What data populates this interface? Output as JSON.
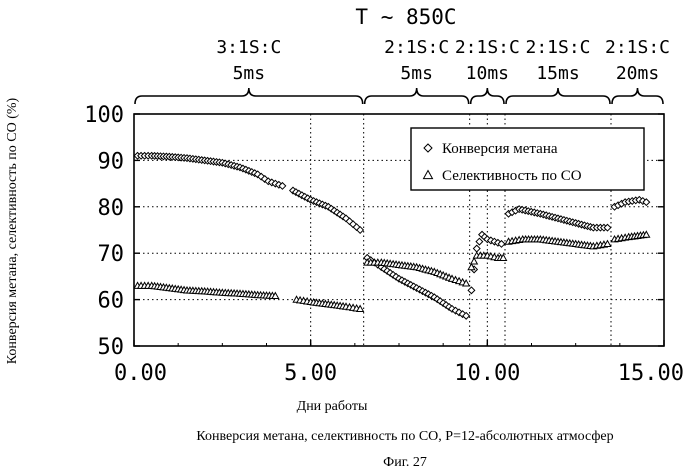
{
  "chart_data": {
    "type": "scatter",
    "title": "T ~ 850C",
    "xlabel": "Дни работы",
    "ylabel": "Конверсия метана, селективность по CO (%)",
    "caption": "Конверсия метана, селективность по CO,  P=12-абсолютных атмосфер",
    "figure_label": "Фиг. 27",
    "xlim": [
      0,
      15
    ],
    "ylim": [
      50,
      100
    ],
    "xticks": [
      "0.00",
      "5.00",
      "10.00",
      "15.00"
    ],
    "yticks": [
      "50",
      "60",
      "70",
      "80",
      "90",
      "100"
    ],
    "grid": "dotted",
    "legend_position": "top-right",
    "period_boundaries": [
      6.5,
      9.5,
      10.5,
      13.5
    ],
    "periods": [
      {
        "line1": "3:1S:C",
        "line2": "5ms",
        "start": 0,
        "end": 6.5
      },
      {
        "line1": "2:1S:C",
        "line2": "5ms",
        "start": 6.5,
        "end": 9.5
      },
      {
        "line1": "2:1S:C",
        "line2": "10ms",
        "start": 9.5,
        "end": 10.5
      },
      {
        "line1": "2:1S:C",
        "line2": "15ms",
        "start": 10.5,
        "end": 13.5
      },
      {
        "line1": "2:1S:C",
        "line2": "20ms",
        "start": 13.5,
        "end": 15
      }
    ],
    "series": [
      {
        "name": "Конверсия метана",
        "marker": "diamond",
        "segments": [
          [
            [
              0.1,
              91.0
            ],
            [
              0.5,
              91.0
            ],
            [
              1.0,
              90.8
            ],
            [
              1.5,
              90.5
            ],
            [
              2.0,
              90.0
            ],
            [
              2.5,
              89.5
            ],
            [
              3.0,
              88.5
            ],
            [
              3.5,
              87.0
            ],
            [
              3.8,
              85.5
            ],
            [
              4.2,
              84.5
            ]
          ],
          [
            [
              4.5,
              83.5
            ],
            [
              5.0,
              81.5
            ],
            [
              5.5,
              80.0
            ],
            [
              6.0,
              77.5
            ],
            [
              6.4,
              75.0
            ]
          ],
          [
            [
              6.6,
              69.0
            ],
            [
              7.0,
              67.0
            ],
            [
              7.5,
              64.5
            ],
            [
              8.0,
              62.5
            ],
            [
              8.5,
              60.5
            ],
            [
              9.0,
              58.0
            ],
            [
              9.4,
              56.5
            ]
          ],
          [
            [
              9.55,
              62.0
            ],
            [
              9.7,
              71.0
            ],
            [
              9.85,
              74.0
            ],
            [
              10.0,
              73.0
            ],
            [
              10.2,
              72.5
            ],
            [
              10.4,
              72.0
            ]
          ],
          [
            [
              10.6,
              78.5
            ],
            [
              10.9,
              79.5
            ],
            [
              11.5,
              78.5
            ],
            [
              12.0,
              77.5
            ],
            [
              12.5,
              76.5
            ],
            [
              13.0,
              75.5
            ],
            [
              13.4,
              75.5
            ]
          ],
          [
            [
              13.6,
              80.0
            ],
            [
              13.9,
              81.0
            ],
            [
              14.3,
              81.5
            ],
            [
              14.5,
              81.0
            ]
          ]
        ]
      },
      {
        "name": "Селективность по CO",
        "marker": "triangle",
        "segments": [
          [
            [
              0.1,
              63.0
            ],
            [
              0.5,
              63.0
            ],
            [
              1.0,
              62.5
            ],
            [
              1.5,
              62.0
            ],
            [
              2.0,
              61.8
            ],
            [
              2.5,
              61.5
            ],
            [
              3.0,
              61.3
            ],
            [
              3.5,
              61.0
            ],
            [
              4.0,
              60.8
            ]
          ],
          [
            [
              4.6,
              60.0
            ],
            [
              5.0,
              59.5
            ],
            [
              5.5,
              59.0
            ],
            [
              6.0,
              58.5
            ],
            [
              6.4,
              58.0
            ]
          ],
          [
            [
              6.6,
              68.0
            ],
            [
              7.0,
              68.0
            ],
            [
              7.5,
              67.5
            ],
            [
              8.0,
              67.0
            ],
            [
              8.5,
              66.0
            ],
            [
              9.0,
              64.5
            ],
            [
              9.4,
              63.5
            ]
          ],
          [
            [
              9.55,
              67.0
            ],
            [
              9.7,
              69.5
            ],
            [
              10.0,
              69.5
            ],
            [
              10.3,
              69.0
            ],
            [
              10.45,
              69.0
            ]
          ],
          [
            [
              10.6,
              72.5
            ],
            [
              11.0,
              73.0
            ],
            [
              11.5,
              73.0
            ],
            [
              12.0,
              72.5
            ],
            [
              12.5,
              72.0
            ],
            [
              13.0,
              71.5
            ],
            [
              13.4,
              72.0
            ]
          ],
          [
            [
              13.6,
              73.0
            ],
            [
              14.0,
              73.5
            ],
            [
              14.5,
              74.0
            ]
          ]
        ]
      }
    ]
  }
}
